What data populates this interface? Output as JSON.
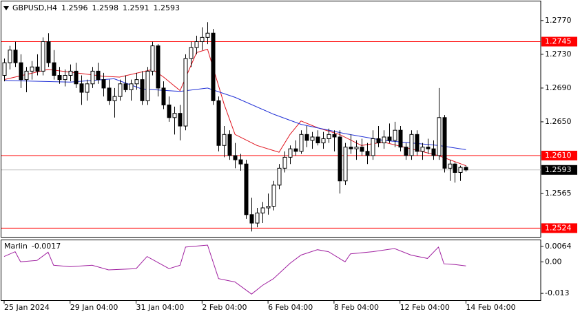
{
  "chart_data": {
    "type": "candlestick",
    "symbol": "GBPUSD,H4",
    "open": [
      1.2705,
      1.272,
      1.2735,
      1.272,
      1.27,
      1.271,
      1.2715,
      1.271,
      1.2745,
      1.272,
      1.2705,
      1.27,
      1.2705,
      1.271,
      1.2695,
      1.2685,
      1.2695,
      1.271,
      1.27,
      1.269,
      1.2675,
      1.268,
      1.2695,
      1.2688,
      1.2695,
      1.27,
      1.2675,
      1.271,
      1.274,
      1.269,
      1.267,
      1.2655,
      1.266,
      1.2645,
      1.2725,
      1.2738,
      1.2745,
      1.275,
      1.2755,
      1.2675,
      1.2622,
      1.2635,
      1.261,
      1.2605,
      1.26,
      1.254,
      1.253,
      1.2542,
      1.2548,
      1.255,
      1.2575,
      1.2595,
      1.2608,
      1.2618,
      1.2615,
      1.2635,
      1.2628,
      1.2632,
      1.2625,
      1.263,
      1.2635,
      1.2632,
      1.258,
      1.262,
      1.2618,
      1.262,
      1.2615,
      1.261,
      1.263,
      1.2625,
      1.2632,
      1.2628,
      1.264,
      1.262,
      1.261,
      1.2635,
      1.2615,
      1.262,
      1.2618,
      1.261,
      1.2655,
      1.2595,
      1.26,
      1.259,
      1.2596
    ],
    "high": [
      1.2725,
      1.274,
      1.2745,
      1.273,
      1.2715,
      1.2722,
      1.273,
      1.275,
      1.2755,
      1.2735,
      1.2715,
      1.2712,
      1.2718,
      1.272,
      1.2705,
      1.27,
      1.2715,
      1.272,
      1.2708,
      1.27,
      1.269,
      1.27,
      1.2705,
      1.27,
      1.2708,
      1.271,
      1.2715,
      1.2745,
      1.2742,
      1.2698,
      1.268,
      1.2668,
      1.267,
      1.273,
      1.2745,
      1.2752,
      1.2762,
      1.2768,
      1.276,
      1.268,
      1.2645,
      1.264,
      1.2625,
      1.2612,
      1.2605,
      1.256,
      1.2548,
      1.2555,
      1.2565,
      1.258,
      1.26,
      1.2615,
      1.2622,
      1.2628,
      1.264,
      1.2645,
      1.2638,
      1.264,
      1.2638,
      1.2642,
      1.264,
      1.264,
      1.2625,
      1.2635,
      1.2628,
      1.263,
      1.2625,
      1.264,
      1.2645,
      1.264,
      1.2648,
      1.265,
      1.2645,
      1.2625,
      1.264,
      1.264,
      1.2625,
      1.263,
      1.2628,
      1.269,
      1.2658,
      1.2605,
      1.2602,
      1.2598,
      1.2598
    ],
    "low": [
      1.2698,
      1.2712,
      1.2715,
      1.269,
      1.2685,
      1.27,
      1.2705,
      1.2705,
      1.2715,
      1.27,
      1.2695,
      1.2692,
      1.2698,
      1.269,
      1.267,
      1.2675,
      1.269,
      1.2695,
      1.268,
      1.267,
      1.2655,
      1.2675,
      1.2685,
      1.2675,
      1.2688,
      1.267,
      1.267,
      1.2705,
      1.268,
      1.2665,
      1.265,
      1.2635,
      1.2628,
      1.264,
      1.2715,
      1.273,
      1.2735,
      1.2742,
      1.267,
      1.2615,
      1.2608,
      1.2605,
      1.2595,
      1.2592,
      1.2535,
      1.252,
      1.2525,
      1.253,
      1.254,
      1.2545,
      1.257,
      1.259,
      1.26,
      1.261,
      1.2612,
      1.262,
      1.2618,
      1.2622,
      1.2618,
      1.2625,
      1.2615,
      1.2565,
      1.2575,
      1.2612,
      1.2605,
      1.261,
      1.26,
      1.2605,
      1.262,
      1.2618,
      1.2625,
      1.262,
      1.2615,
      1.2605,
      1.2605,
      1.261,
      1.2605,
      1.2612,
      1.2605,
      1.2605,
      1.259,
      1.258,
      1.2578,
      1.258,
      1.2591
    ],
    "close": [
      1.272,
      1.2735,
      1.272,
      1.27,
      1.271,
      1.2715,
      1.271,
      1.2745,
      1.272,
      1.2705,
      1.27,
      1.2705,
      1.271,
      1.2695,
      1.2685,
      1.2695,
      1.271,
      1.27,
      1.269,
      1.2675,
      1.268,
      1.2695,
      1.2688,
      1.2695,
      1.27,
      1.2675,
      1.271,
      1.274,
      1.269,
      1.267,
      1.2655,
      1.266,
      1.2645,
      1.2725,
      1.2738,
      1.2745,
      1.275,
      1.2755,
      1.2675,
      1.2622,
      1.2635,
      1.261,
      1.2605,
      1.26,
      1.254,
      1.253,
      1.2542,
      1.2548,
      1.255,
      1.2575,
      1.2595,
      1.2608,
      1.2618,
      1.2615,
      1.2635,
      1.2628,
      1.2632,
      1.2625,
      1.263,
      1.2635,
      1.2632,
      1.258,
      1.262,
      1.2618,
      1.262,
      1.2615,
      1.261,
      1.263,
      1.2625,
      1.2632,
      1.2628,
      1.264,
      1.262,
      1.261,
      1.2635,
      1.2615,
      1.262,
      1.2618,
      1.261,
      1.2655,
      1.2595,
      1.26,
      1.259,
      1.2596,
      1.2593
    ],
    "up_color": "#ffffff",
    "down_color": "#000000",
    "xlim": [
      -0.5,
      97.6
    ],
    "xticks": [
      {
        "value": 0,
        "label": "25 Jan 2024"
      },
      {
        "value": 12,
        "label": "29 Jan 04:00"
      },
      {
        "value": 24,
        "label": "31 Jan 04:00"
      },
      {
        "value": 36,
        "label": "2 Feb 04:00"
      },
      {
        "value": 48,
        "label": "6 Feb 04:00"
      },
      {
        "value": 60,
        "label": "8 Feb 04:00"
      },
      {
        "value": 72,
        "label": "12 Feb 04:00"
      },
      {
        "value": 84,
        "label": "14 Feb 04:00"
      }
    ],
    "ylim": [
      1.25129,
      1.27927
    ],
    "yticks": [
      {
        "value": 1.277,
        "label": "1.2770"
      },
      {
        "value": 1.273,
        "label": "1.2730"
      },
      {
        "value": 1.269,
        "label": "1.2690"
      },
      {
        "value": 1.265,
        "label": "1.2650"
      },
      {
        "value": 1.2565,
        "label": "1.2565"
      }
    ],
    "levels": [
      {
        "value": 1.2745,
        "label": "1.2745"
      },
      {
        "value": 1.261,
        "label": "1.2610"
      },
      {
        "value": 1.2524,
        "label": "1.2524"
      }
    ],
    "level_color": "#ff0000",
    "moving_averages": [
      {
        "color": "#e0141e",
        "index": [
          0,
          8,
          18,
          21,
          27,
          29,
          32,
          35,
          37,
          40,
          42,
          46,
          50,
          52,
          54,
          57,
          61,
          65,
          69,
          74,
          79,
          84
        ],
        "values": [
          1.27,
          1.2712,
          1.2704,
          1.2703,
          1.2712,
          1.2703,
          1.2687,
          1.2732,
          1.2736,
          1.2671,
          1.2635,
          1.2622,
          1.2614,
          1.2635,
          1.2651,
          1.2643,
          1.2635,
          1.2622,
          1.2626,
          1.2618,
          1.261,
          1.2598
        ]
      },
      {
        "color": "#1f2fd6",
        "index": [
          0,
          12,
          20,
          25,
          32,
          37,
          42,
          49,
          54,
          62,
          69,
          79,
          84
        ],
        "values": [
          1.2699,
          1.2697,
          1.2701,
          1.2689,
          1.2686,
          1.269,
          1.2679,
          1.2659,
          1.2647,
          1.2636,
          1.2628,
          1.2622,
          1.2617
        ]
      }
    ],
    "indicator": {
      "title": "Marlin",
      "color": "#a020a0",
      "index": [
        0,
        2,
        3,
        6,
        8,
        9,
        12,
        16,
        19,
        24,
        26,
        30,
        32,
        33,
        37,
        39,
        42,
        45,
        47,
        49,
        52,
        54,
        57,
        59,
        62,
        63,
        67,
        71,
        74,
        77,
        79,
        80,
        82,
        84
      ],
      "values": [
        0.0022,
        0.0042,
        0,
        0.0006,
        0.004,
        -0.0014,
        -0.002,
        -0.0014,
        -0.0033,
        -0.0028,
        0.0022,
        -0.0028,
        -0.0014,
        0.0061,
        0.0069,
        -0.0069,
        -0.0083,
        -0.0133,
        -0.0097,
        -0.0069,
        -0.0006,
        0.0028,
        0.005,
        0.0042,
        0,
        0.0033,
        0.0042,
        0.0055,
        0.0028,
        0.0014,
        0.0061,
        -0.0008,
        -0.0011,
        -0.0017
      ],
      "ylim": [
        -0.0158,
        0.0089
      ],
      "yticks": [
        0.0064,
        {
          "value": 0,
          "label": "0.00"
        },
        -0.013
      ]
    }
  }
}
